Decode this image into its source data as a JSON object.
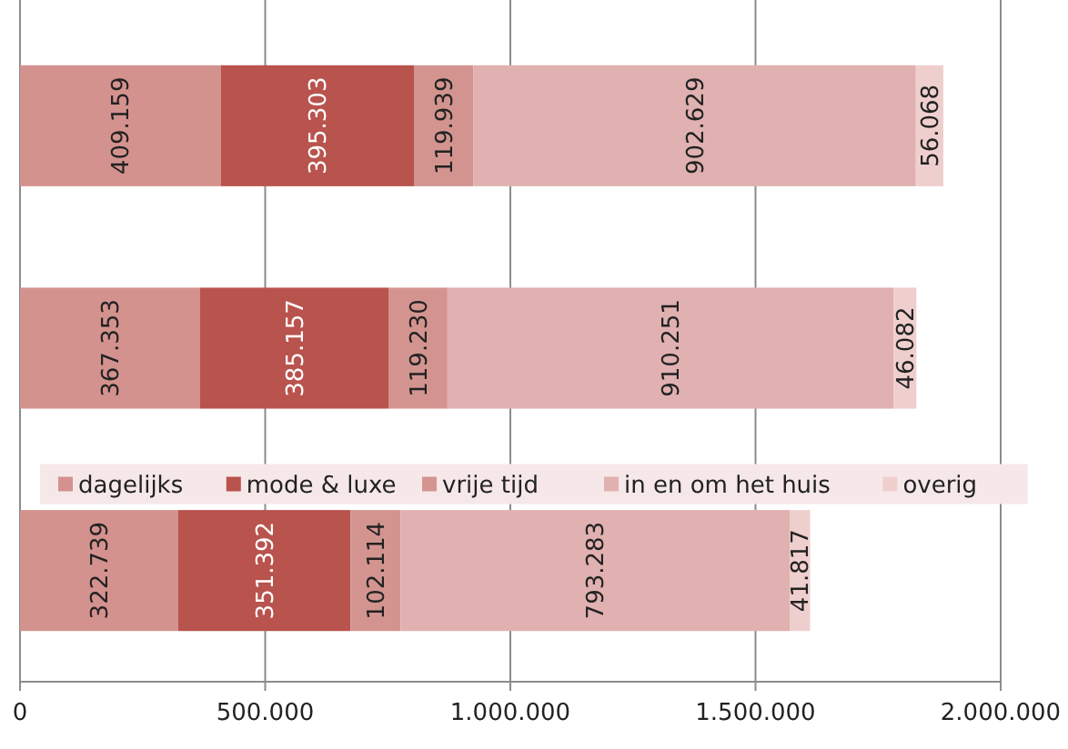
{
  "chart_data": {
    "type": "bar",
    "orientation": "horizontal",
    "stacked": true,
    "categories": [
      null,
      null,
      null
    ],
    "series": [
      {
        "name": "dagelijks",
        "color": "#d4928f",
        "values": [
          409159,
          367353,
          322739
        ],
        "value_labels": [
          "409.159",
          "367.353",
          "322.739"
        ]
      },
      {
        "name": "mode & luxe",
        "color": "#b9534d",
        "values": [
          395303,
          385157,
          351392
        ],
        "value_labels": [
          "395.303",
          "385.157",
          "351.392"
        ]
      },
      {
        "name": "vrije tijd",
        "color": "#d39490",
        "values": [
          119939,
          119230,
          102114
        ],
        "value_labels": [
          "119.939",
          "119.230",
          "102.114"
        ]
      },
      {
        "name": "in en om het huis",
        "color": "#e0b1b0",
        "values": [
          902629,
          910251,
          793283
        ],
        "value_labels": [
          "902.629",
          "910.251",
          "793.283"
        ]
      },
      {
        "name": "overig",
        "color": "#efcfce",
        "values": [
          56068,
          46082,
          41817
        ],
        "value_labels": [
          "56.068",
          "46.082",
          "41.817"
        ]
      }
    ],
    "xlim": [
      0,
      2000000
    ],
    "xticks": [
      {
        "value": 0,
        "label": "0"
      },
      {
        "value": 500000,
        "label": "500.000"
      },
      {
        "value": 1000000,
        "label": "1.000.000"
      },
      {
        "value": 1500000,
        "label": "1.500.000"
      },
      {
        "value": 2000000,
        "label": "2.000.000"
      }
    ],
    "grid": "x",
    "legend": "center"
  }
}
